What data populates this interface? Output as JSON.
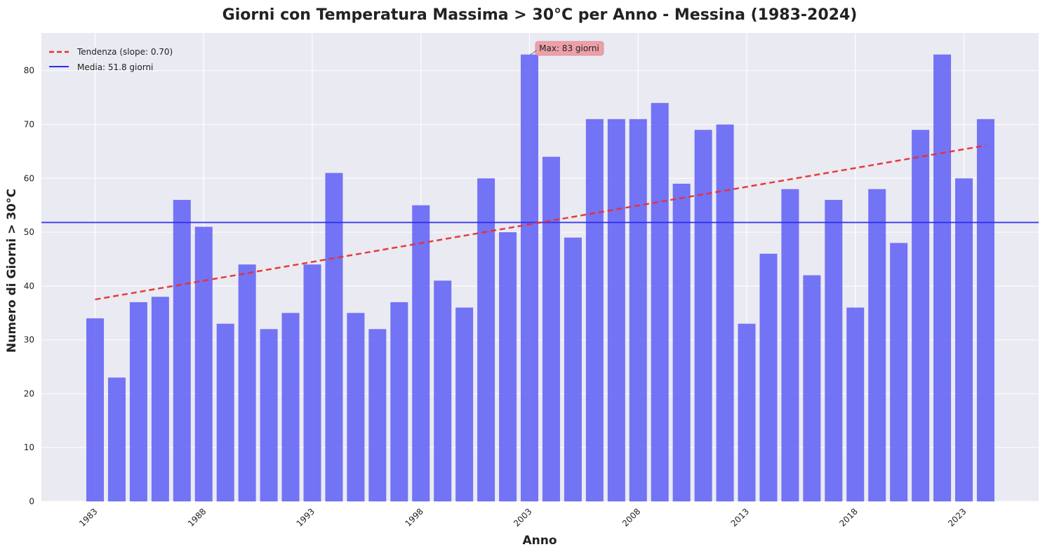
{
  "chart_data": {
    "type": "bar",
    "title": "Giorni con Temperatura Massima > 30°C per Anno - Messina (1983-2024)",
    "xlabel": "Anno",
    "ylabel": "Numero di Giorni > 30°C",
    "ylim": [
      0,
      87
    ],
    "yticks": [
      "0",
      "10",
      "20",
      "30",
      "40",
      "50",
      "60",
      "70",
      "80"
    ],
    "xticks": [
      "1983",
      "1988",
      "1993",
      "1998",
      "2003",
      "2008",
      "2013",
      "2018",
      "2023"
    ],
    "grid": true,
    "legend_position": "top-left",
    "categories": [
      1983,
      1984,
      1985,
      1986,
      1987,
      1988,
      1989,
      1990,
      1991,
      1992,
      1993,
      1994,
      1995,
      1996,
      1997,
      1998,
      1999,
      2000,
      2001,
      2002,
      2003,
      2004,
      2005,
      2006,
      2007,
      2008,
      2009,
      2010,
      2011,
      2012,
      2013,
      2014,
      2015,
      2016,
      2017,
      2018,
      2019,
      2020,
      2021,
      2022,
      2023,
      2024
    ],
    "values": [
      34,
      23,
      37,
      38,
      56,
      51,
      33,
      44,
      32,
      35,
      44,
      61,
      35,
      32,
      37,
      55,
      41,
      36,
      60,
      50,
      83,
      64,
      49,
      71,
      71,
      71,
      74,
      59,
      69,
      70,
      33,
      46,
      58,
      42,
      56,
      36,
      58,
      48,
      69,
      83,
      60,
      71
    ],
    "bar_color": "#6666f5",
    "trend": {
      "label": "Tendenza (slope: 0.70)",
      "start": [
        1983,
        37.5
      ],
      "end": [
        2024,
        66.1
      ],
      "color": "#e8302f"
    },
    "mean": {
      "label": "Media: 51.8 giorni",
      "value": 51.8,
      "color": "#2a2af0"
    },
    "annotation": {
      "text": "Max: 83 giorni",
      "x": 2003,
      "y": 83,
      "bg": "#eda0a8"
    }
  }
}
